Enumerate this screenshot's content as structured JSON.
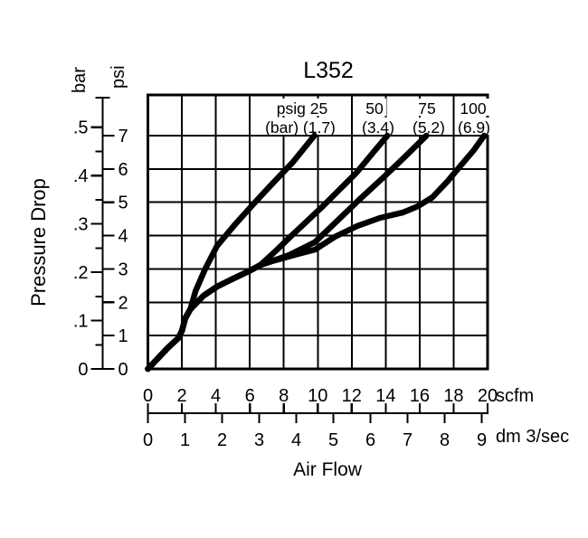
{
  "title": "L352",
  "ink_color": "#000000",
  "background_color": "#ffffff",
  "y_axis": {
    "label": "Pressure Drop",
    "scales": [
      {
        "unit": "bar",
        "ticks": [
          {
            "label": "0",
            "value": 0
          },
          {
            "label": ".1",
            "value": 0.1
          },
          {
            "label": ".2",
            "value": 0.2
          },
          {
            "label": ".3",
            "value": 0.3
          },
          {
            "label": ".4",
            "value": 0.4
          },
          {
            "label": ".5",
            "value": 0.5
          }
        ],
        "minor_tick_values": [
          0.05,
          0.15,
          0.25,
          0.35,
          0.45
        ]
      },
      {
        "unit": "psi",
        "ticks": [
          {
            "label": "0",
            "value": 0
          },
          {
            "label": "1",
            "value": 1
          },
          {
            "label": "2",
            "value": 2
          },
          {
            "label": "3",
            "value": 3
          },
          {
            "label": "4",
            "value": 4
          },
          {
            "label": "5",
            "value": 5
          },
          {
            "label": "6",
            "value": 6
          },
          {
            "label": "7",
            "value": 7
          }
        ]
      }
    ]
  },
  "x_axis": {
    "label": "Air Flow",
    "scales": [
      {
        "unit": "scfm",
        "ticks": [
          {
            "label": "0",
            "value": 0
          },
          {
            "label": "2",
            "value": 2
          },
          {
            "label": "4",
            "value": 4
          },
          {
            "label": "6",
            "value": 6
          },
          {
            "label": "8",
            "value": 8
          },
          {
            "label": "10",
            "value": 10
          },
          {
            "label": "12",
            "value": 12
          },
          {
            "label": "14",
            "value": 14
          },
          {
            "label": "16",
            "value": 16
          },
          {
            "label": "18",
            "value": 18
          },
          {
            "label": "20",
            "value": 20
          }
        ]
      },
      {
        "unit": "dm 3/sec",
        "ticks": [
          {
            "label": "0",
            "value": 0
          },
          {
            "label": "1",
            "value": 1
          },
          {
            "label": "2",
            "value": 2
          },
          {
            "label": "3",
            "value": 3
          },
          {
            "label": "4",
            "value": 4
          },
          {
            "label": "5",
            "value": 5
          },
          {
            "label": "6",
            "value": 6
          },
          {
            "label": "7",
            "value": 7
          },
          {
            "label": "8",
            "value": 8
          },
          {
            "label": "9",
            "value": 9
          }
        ]
      }
    ]
  },
  "curve_labels": [
    {
      "line1": "psig 25",
      "line2": "(bar) (1.7)"
    },
    {
      "line1": "50",
      "line2": "(3.4)"
    },
    {
      "line1": "75",
      "line2": "(5.2)"
    },
    {
      "line1": "100",
      "line2": "(6.9)"
    }
  ],
  "chart_data": {
    "type": "line",
    "title": "L352",
    "xlabel": "Air Flow",
    "ylabel": "Pressure Drop",
    "x_units": [
      "scfm",
      "dm 3/sec"
    ],
    "y_units": [
      "bar",
      "psi"
    ],
    "xlim_scfm": [
      0,
      20
    ],
    "ylim_psi": [
      0,
      7
    ],
    "grid": true,
    "legend_position": "labels above curve ends, inside top band of plot",
    "series": [
      {
        "name": "25 psig (1.7 bar) inlet",
        "x_scfm": [
          0,
          1.15,
          1.78,
          2.0,
          2.2,
          2.5,
          2.8,
          3.38,
          4.07,
          5.09,
          6.2,
          7.38,
          8.55,
          9.8
        ],
        "y_psi": [
          0,
          0.62,
          0.92,
          1.14,
          1.52,
          1.79,
          2.33,
          3.01,
          3.69,
          4.31,
          4.94,
          5.59,
          6.21,
          7.0
        ]
      },
      {
        "name": "50 psig (3.4 bar) inlet",
        "x_scfm": [
          0,
          1.15,
          1.78,
          2.0,
          2.2,
          2.5,
          3.28,
          4.07,
          5.03,
          5.94,
          6.63,
          7.54,
          8.44,
          9.4,
          10.36,
          11.32,
          12.28,
          13.24,
          14.1
        ],
        "y_psi": [
          0,
          0.62,
          0.92,
          1.14,
          1.52,
          1.79,
          2.2,
          2.47,
          2.71,
          2.93,
          3.12,
          3.55,
          3.99,
          4.45,
          4.91,
          5.4,
          5.89,
          6.48,
          7.0
        ]
      },
      {
        "name": "75 psig (5.2 bar) inlet",
        "x_scfm": [
          0,
          1.15,
          1.78,
          2.0,
          2.2,
          2.5,
          3.28,
          4.07,
          5.03,
          5.94,
          6.63,
          7.27,
          8.33,
          9.83,
          11.1,
          12.49,
          13.87,
          15.1,
          16.4
        ],
        "y_psi": [
          0,
          0.62,
          0.92,
          1.14,
          1.52,
          1.79,
          2.2,
          2.47,
          2.71,
          2.93,
          3.12,
          3.23,
          3.42,
          3.8,
          4.42,
          5.1,
          5.75,
          6.35,
          7.0
        ]
      },
      {
        "name": "100 psig (6.9 bar) inlet",
        "x_scfm": [
          0,
          1.15,
          1.78,
          2.0,
          2.2,
          2.5,
          3.28,
          4.07,
          5.03,
          5.94,
          6.63,
          7.27,
          7.8,
          8.87,
          9.83,
          11.0,
          12.33,
          13.66,
          15.0,
          15.9,
          16.75,
          17.66,
          18.56,
          19.2,
          19.8
        ],
        "y_psi": [
          0,
          0.62,
          0.92,
          1.14,
          1.52,
          1.79,
          2.2,
          2.47,
          2.71,
          2.93,
          3.12,
          3.23,
          3.3,
          3.45,
          3.58,
          3.96,
          4.29,
          4.53,
          4.69,
          4.88,
          5.15,
          5.64,
          6.19,
          6.57,
          7.0
        ]
      }
    ]
  }
}
